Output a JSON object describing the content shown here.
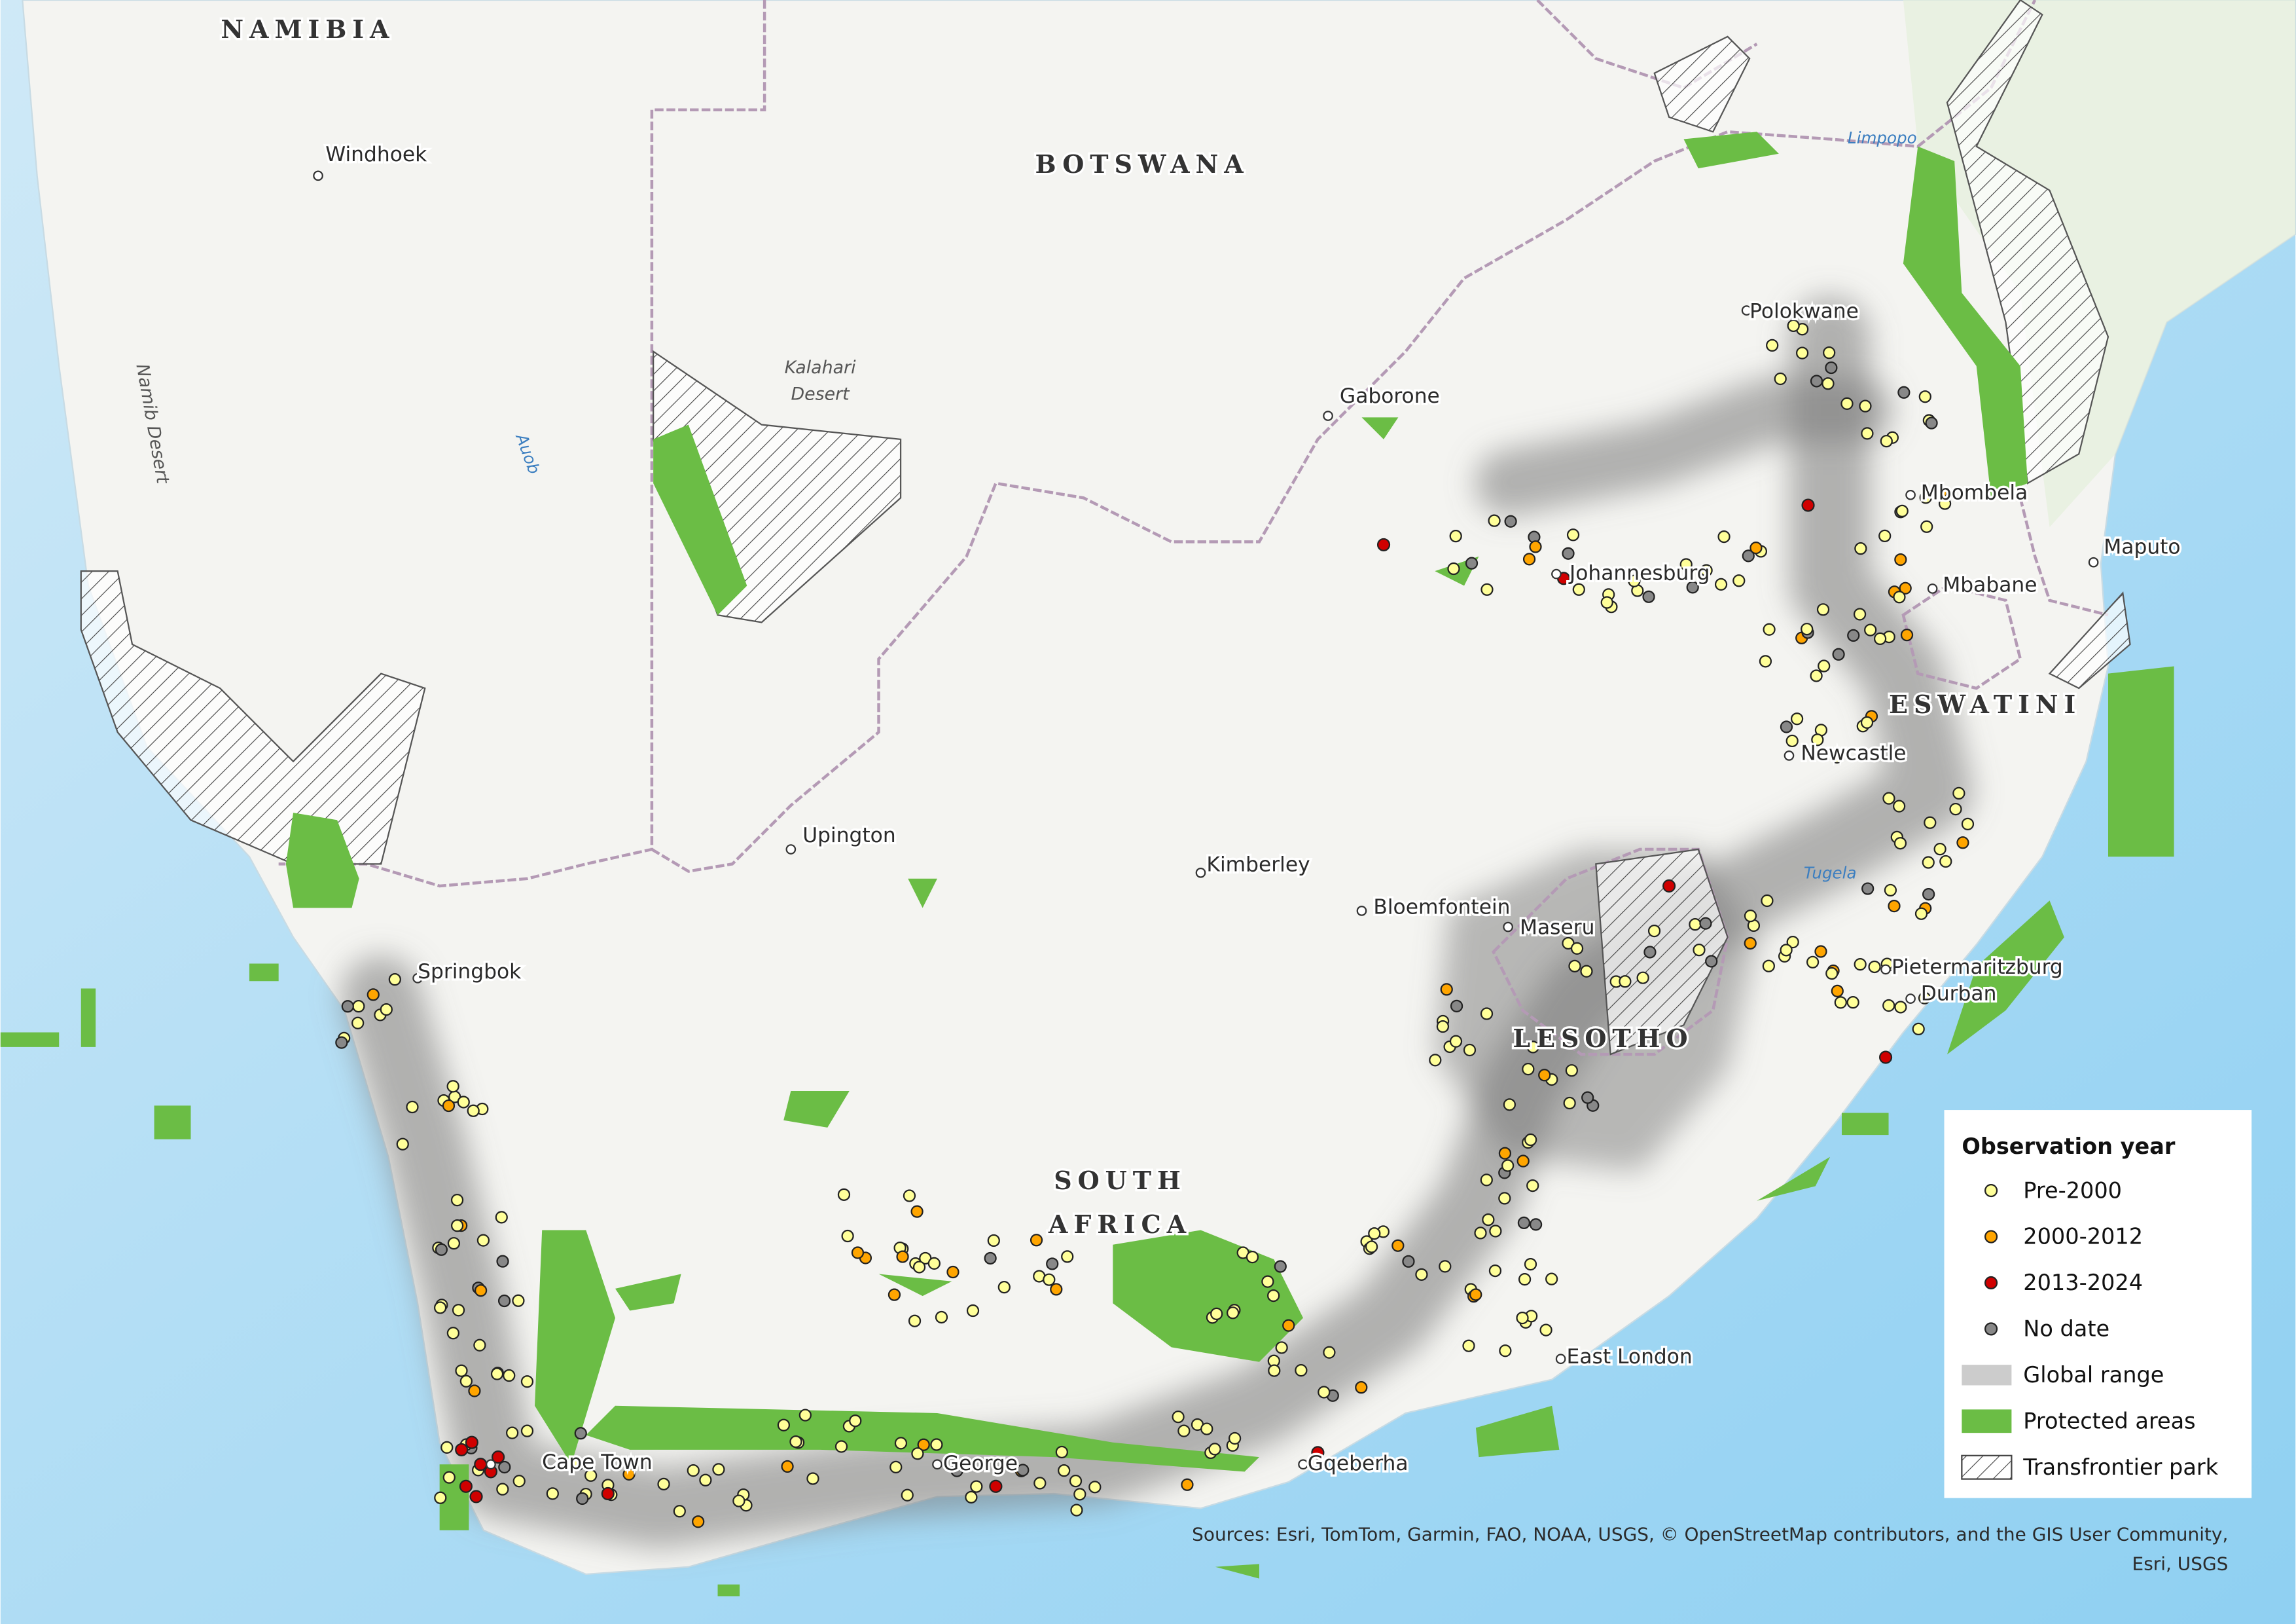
{
  "countries": {
    "namibia": "NAMIBIA",
    "botswana": "BOTSWANA",
    "south_africa": [
      "SOUTH",
      "AFRICA"
    ],
    "lesotho": "LESOTHO",
    "eswatini": "ESWATINI"
  },
  "cities": [
    "Windhoek",
    "Gaborone",
    "Polokwane",
    "Mbombela",
    "Maputo",
    "Mbabane",
    "Johannesburg",
    "Newcastle",
    "Upington",
    "Kimberley",
    "Bloemfontein",
    "Maseru",
    "Pietermaritzburg",
    "Durban",
    "Springbok",
    "East London",
    "Cape Town",
    "George",
    "Gqeberha"
  ],
  "features": {
    "kalahari": [
      "Kalahari",
      "Desert"
    ],
    "namib": "Namib Desert",
    "auob": "Auob",
    "limpopo": "Limpopo",
    "tugela": "Tugela"
  },
  "legend": {
    "title": "Observation year",
    "items": [
      "Pre-2000",
      "2000-2012",
      "2013-2024",
      "No date",
      "Global range",
      "Protected areas",
      "Transfrontier park"
    ]
  },
  "sources": [
    "Sources: Esri, TomTom, Garmin, FAO, NOAA, USGS, © OpenStreetMap contributors, and the GIS User Community,",
    "Esri, USGS"
  ]
}
